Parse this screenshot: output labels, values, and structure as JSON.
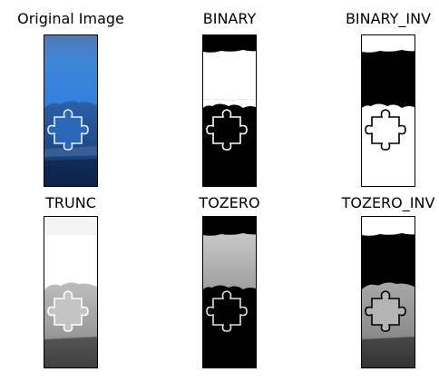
{
  "panels": [
    {
      "title": "Original Image"
    },
    {
      "title": "BINARY"
    },
    {
      "title": "BINARY_INV"
    },
    {
      "title": "TRUNC"
    },
    {
      "title": "TOZERO"
    },
    {
      "title": "TOZERO_INV"
    }
  ]
}
